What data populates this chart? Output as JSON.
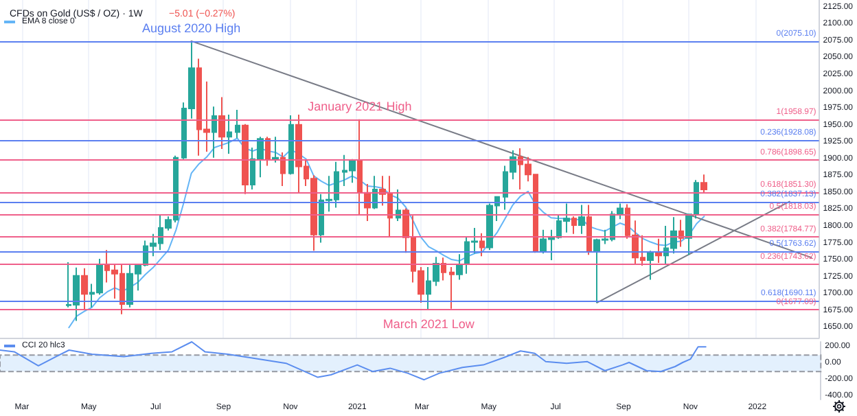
{
  "chart_data": [
    {
      "type": "candlestick",
      "title": "CFDs on Gold (US$ / OZ) · 1W",
      "subtitle": "−5.01 (−0.27%)",
      "x": [
        "2020-04-13",
        "2020-04-20",
        "2020-04-27",
        "2020-05-04",
        "2020-05-11",
        "2020-05-18",
        "2020-05-25",
        "2020-06-01",
        "2020-06-08",
        "2020-06-15",
        "2020-06-22",
        "2020-06-29",
        "2020-07-06",
        "2020-07-13",
        "2020-07-20",
        "2020-07-27",
        "2020-08-03",
        "2020-08-10",
        "2020-08-17",
        "2020-08-24",
        "2020-08-31",
        "2020-09-07",
        "2020-09-14",
        "2020-09-21",
        "2020-09-28",
        "2020-10-05",
        "2020-10-12",
        "2020-10-19",
        "2020-10-26",
        "2020-11-02",
        "2020-11-09",
        "2020-11-16",
        "2020-11-23",
        "2020-11-30",
        "2020-12-07",
        "2020-12-14",
        "2020-12-21",
        "2020-12-28",
        "2021-01-04",
        "2021-01-11",
        "2021-01-18",
        "2021-01-25",
        "2021-02-01",
        "2021-02-08",
        "2021-02-15",
        "2021-02-22",
        "2021-03-01",
        "2021-03-08",
        "2021-03-15",
        "2021-03-22",
        "2021-03-29",
        "2021-04-05",
        "2021-04-12",
        "2021-04-19",
        "2021-04-26",
        "2021-05-03",
        "2021-05-10",
        "2021-05-17",
        "2021-05-24",
        "2021-05-31",
        "2021-06-07",
        "2021-06-14",
        "2021-06-21",
        "2021-06-28",
        "2021-07-05",
        "2021-07-12",
        "2021-07-19",
        "2021-07-26",
        "2021-08-02",
        "2021-08-09",
        "2021-08-16",
        "2021-08-23",
        "2021-08-30",
        "2021-09-06",
        "2021-09-13",
        "2021-09-20",
        "2021-09-27",
        "2021-10-04",
        "2021-10-11",
        "2021-10-18",
        "2021-10-25",
        "2021-11-01",
        "2021-11-08",
        "2021-11-15"
      ],
      "ohlc": [
        [
          1683,
          1747,
          1680,
          1684
        ],
        [
          1684,
          1739,
          1660,
          1727
        ],
        [
          1727,
          1738,
          1676,
          1700
        ],
        [
          1700,
          1715,
          1680,
          1702
        ],
        [
          1702,
          1752,
          1699,
          1743
        ],
        [
          1743,
          1765,
          1717,
          1735
        ],
        [
          1735,
          1744,
          1693,
          1730
        ],
        [
          1730,
          1744,
          1670,
          1685
        ],
        [
          1685,
          1745,
          1680,
          1730
        ],
        [
          1730,
          1745,
          1705,
          1743
        ],
        [
          1743,
          1779,
          1741,
          1771
        ],
        [
          1771,
          1789,
          1756,
          1775
        ],
        [
          1775,
          1818,
          1765,
          1798
        ],
        [
          1798,
          1815,
          1794,
          1810
        ],
        [
          1810,
          1905,
          1806,
          1902
        ],
        [
          1902,
          1984,
          1900,
          1975
        ],
        [
          1975,
          2075,
          1960,
          2035
        ],
        [
          2035,
          2049,
          1905,
          1944
        ],
        [
          1944,
          2015,
          1911,
          1940
        ],
        [
          1940,
          1978,
          1902,
          1964
        ],
        [
          1964,
          1992,
          1915,
          1933
        ],
        [
          1933,
          1966,
          1908,
          1940
        ],
        [
          1940,
          1973,
          1931,
          1950
        ],
        [
          1950,
          1952,
          1848,
          1862
        ],
        [
          1862,
          1917,
          1855,
          1900
        ],
        [
          1900,
          1933,
          1873,
          1930
        ],
        [
          1930,
          1933,
          1890,
          1899
        ],
        [
          1899,
          1933,
          1895,
          1902
        ],
        [
          1902,
          1910,
          1860,
          1879
        ],
        [
          1879,
          1965,
          1877,
          1951
        ],
        [
          1951,
          1966,
          1850,
          1889
        ],
        [
          1889,
          1899,
          1860,
          1871
        ],
        [
          1871,
          1876,
          1764,
          1788
        ],
        [
          1788,
          1848,
          1776,
          1839
        ],
        [
          1839,
          1875,
          1822,
          1840
        ],
        [
          1840,
          1896,
          1828,
          1881
        ],
        [
          1881,
          1906,
          1860,
          1883
        ],
        [
          1883,
          1900,
          1865,
          1898
        ],
        [
          1898,
          1959,
          1817,
          1850
        ],
        [
          1850,
          1863,
          1808,
          1828
        ],
        [
          1828,
          1875,
          1826,
          1855
        ],
        [
          1855,
          1875,
          1831,
          1848
        ],
        [
          1848,
          1875,
          1785,
          1813
        ],
        [
          1813,
          1855,
          1808,
          1824
        ],
        [
          1824,
          1827,
          1761,
          1784
        ],
        [
          1784,
          1816,
          1717,
          1734
        ],
        [
          1734,
          1740,
          1687,
          1700
        ],
        [
          1700,
          1740,
          1677,
          1719
        ],
        [
          1719,
          1755,
          1712,
          1745
        ],
        [
          1745,
          1754,
          1720,
          1732
        ],
        [
          1732,
          1740,
          1678,
          1729
        ],
        [
          1729,
          1759,
          1721,
          1744
        ],
        [
          1744,
          1785,
          1730,
          1777
        ],
        [
          1777,
          1798,
          1760,
          1778
        ],
        [
          1778,
          1790,
          1756,
          1769
        ],
        [
          1769,
          1834,
          1765,
          1831
        ],
        [
          1831,
          1845,
          1808,
          1844
        ],
        [
          1844,
          1890,
          1825,
          1881
        ],
        [
          1881,
          1913,
          1870,
          1903
        ],
        [
          1903,
          1916,
          1855,
          1892
        ],
        [
          1892,
          1903,
          1867,
          1877
        ],
        [
          1877,
          1878,
          1761,
          1764
        ],
        [
          1764,
          1795,
          1760,
          1781
        ],
        [
          1781,
          1795,
          1750,
          1784
        ],
        [
          1784,
          1818,
          1782,
          1808
        ],
        [
          1808,
          1834,
          1791,
          1812
        ],
        [
          1812,
          1815,
          1789,
          1802
        ],
        [
          1802,
          1832,
          1789,
          1814
        ],
        [
          1814,
          1832,
          1758,
          1763
        ],
        [
          1763,
          1782,
          1687,
          1780
        ],
        [
          1780,
          1795,
          1774,
          1781
        ],
        [
          1781,
          1823,
          1778,
          1818
        ],
        [
          1818,
          1834,
          1811,
          1827
        ],
        [
          1827,
          1833,
          1782,
          1787
        ],
        [
          1787,
          1809,
          1745,
          1754
        ],
        [
          1754,
          1787,
          1742,
          1750
        ],
        [
          1750,
          1764,
          1721,
          1761
        ],
        [
          1761,
          1782,
          1746,
          1757
        ],
        [
          1757,
          1801,
          1745,
          1768
        ],
        [
          1768,
          1814,
          1760,
          1793
        ],
        [
          1793,
          1810,
          1770,
          1783
        ],
        [
          1783,
          1818,
          1758,
          1818
        ],
        [
          1818,
          1869,
          1812,
          1865
        ],
        [
          1865,
          1877,
          1849,
          1855
        ]
      ],
      "series": [
        {
          "name": "EMA 8 close 0",
          "type": "line",
          "color": "#64b5f6",
          "values": [
            1650,
            1667,
            1674,
            1680,
            1694,
            1703,
            1709,
            1704,
            1710,
            1717,
            1729,
            1739,
            1752,
            1765,
            1795,
            1835,
            1879,
            1893,
            1903,
            1917,
            1921,
            1925,
            1931,
            1916,
            1912,
            1916,
            1912,
            1910,
            1903,
            1914,
            1908,
            1900,
            1875,
            1867,
            1861,
            1865,
            1869,
            1875,
            1869,
            1860,
            1859,
            1857,
            1847,
            1842,
            1829,
            1808,
            1784,
            1770,
            1764,
            1757,
            1751,
            1749,
            1755,
            1760,
            1762,
            1777,
            1792,
            1812,
            1832,
            1845,
            1852,
            1832,
            1821,
            1813,
            1812,
            1812,
            1810,
            1811,
            1800,
            1796,
            1793,
            1799,
            1805,
            1801,
            1791,
            1782,
            1777,
            1773,
            1772,
            1777,
            1778,
            1787,
            1804,
            1815
          ]
        },
        {
          "type": "line",
          "color": "#787b86",
          "x": [
            "2020-08-03",
            "2022-02-21"
          ],
          "values": [
            2075,
            1754
          ]
        },
        {
          "type": "line",
          "color": "#787b86",
          "x": [
            "2021-08-09",
            "2022-02-01"
          ],
          "values": [
            1687,
            1837
          ]
        }
      ],
      "xlim": [
        "2020-02-10",
        "2022-02-28"
      ],
      "xticks": [
        {
          "value": "2020-03-01",
          "label": null
        },
        {
          "value": "2020-05-01",
          "label": null
        },
        {
          "value": "2020-07-01",
          "label": null
        },
        {
          "value": "2020-09-01",
          "label": null
        },
        {
          "value": "2020-11-01",
          "label": null
        },
        {
          "value": "2021-01-01",
          "label": null
        },
        {
          "value": "2021-03-01",
          "label": null
        },
        {
          "value": "2021-05-01",
          "label": null
        },
        {
          "value": "2021-07-01",
          "label": null
        },
        {
          "value": "2021-09-01",
          "label": null
        },
        {
          "value": "2021-11-01",
          "label": null
        },
        {
          "value": "2022-01-01",
          "label": null
        }
      ],
      "ylim": [
        1635,
        2136
      ],
      "yticks": [
        {
          "value": 1650,
          "label": "1650.00"
        },
        {
          "value": 1675,
          "label": "1675.00"
        },
        {
          "value": 1700,
          "label": "1700.00"
        },
        {
          "value": 1725,
          "label": "1725.00"
        },
        {
          "value": 1750,
          "label": "1750.00"
        },
        {
          "value": 1775,
          "label": "1775.00"
        },
        {
          "value": 1800,
          "label": "1800.00"
        },
        {
          "value": 1825,
          "label": "1825.00"
        },
        {
          "value": 1850,
          "label": "1850.00"
        },
        {
          "value": 1875,
          "label": "1875.00"
        },
        {
          "value": 1900,
          "label": "1900.00"
        },
        {
          "value": 1925,
          "label": "1925.00"
        },
        {
          "value": 1950,
          "label": "1950.00"
        },
        {
          "value": 1975,
          "label": "1975.00"
        },
        {
          "value": 2000,
          "label": "2000.00"
        },
        {
          "value": 2025,
          "label": "2025.00"
        },
        {
          "value": 2050,
          "label": "2050.00"
        },
        {
          "value": 2075,
          "label": "2075.00"
        },
        {
          "value": 2100,
          "label": "2100.00"
        },
        {
          "value": 2125,
          "label": "2125.00"
        }
      ],
      "tick_labels": "y",
      "grid": "x",
      "legend": "top left",
      "marker": "none",
      "ref_lines": [
        {
          "axis": "y",
          "value": 2075.1,
          "label": "0(2075.10)",
          "color": "#5b7ff0"
        },
        {
          "axis": "y",
          "value": 1928.08,
          "label": "0.236(1928.08)",
          "color": "#5b7ff0"
        },
        {
          "axis": "y",
          "value": 1837.13,
          "label": "0.382(1837.13)",
          "color": "#5b7ff0"
        },
        {
          "axis": "y",
          "value": 1763.62,
          "label": "0.5(1763.62)",
          "color": "#5b7ff0"
        },
        {
          "axis": "y",
          "value": 1690.11,
          "label": "0.618(1690.11)",
          "color": "#5b7ff0"
        },
        {
          "axis": "y",
          "value": 1958.97,
          "label": "1(1958.97)",
          "color": "#ef5f8a"
        },
        {
          "axis": "y",
          "value": 1898.65,
          "label": "0.786(1898.65)",
          "color": "#ef5f8a"
        },
        {
          "axis": "y",
          "value": 1851.3,
          "label": "0.618(1851.30)",
          "color": "#ef5f8a"
        },
        {
          "axis": "y",
          "value": 1818.03,
          "label": "0.5(1818.03)",
          "color": "#ef5f8a"
        },
        {
          "axis": "y",
          "value": 1784.77,
          "label": "0.382(1784.77)",
          "color": "#ef5f8a"
        },
        {
          "axis": "y",
          "value": 1743.62,
          "label": "0.236(1743.62)",
          "color": "#ef5f8a"
        },
        {
          "axis": "y",
          "value": 1677.09,
          "label": "0(1677.09)",
          "color": "#ef5f8a"
        }
      ],
      "annotations": [
        {
          "text": "August 2020 High",
          "x": "2020-08-03",
          "y": 2075.1
        },
        {
          "text": "January 2021 High",
          "x": "2021-01-04",
          "y": 1958.97
        },
        {
          "text": "March 2021 Low",
          "x": "2021-03-08",
          "y": 1677.09
        }
      ]
    },
    {
      "type": "line",
      "x": [
        "2020-02-10",
        "2020-02-23",
        "2020-03-16",
        "2020-04-01",
        "2020-04-13",
        "2020-05-04",
        "2020-06-02",
        "2020-06-27",
        "2020-07-16",
        "2020-08-03",
        "2020-08-15",
        "2020-09-05",
        "2020-09-24",
        "2020-10-28",
        "2020-11-26",
        "2020-12-08",
        "2021-01-01",
        "2021-01-15",
        "2021-01-31",
        "2021-02-16",
        "2021-03-03",
        "2021-03-17",
        "2021-04-07",
        "2021-04-26",
        "2021-05-15",
        "2021-05-30",
        "2021-06-12",
        "2021-06-22",
        "2021-07-11",
        "2021-07-30",
        "2021-08-15",
        "2021-08-31",
        "2021-09-06",
        "2021-09-22",
        "2021-10-05",
        "2021-10-18",
        "2021-10-25",
        "2021-11-01",
        "2021-11-08",
        "2021-11-15"
      ],
      "series": [
        {
          "name": "CCI 20 hlc3",
          "color": "#5b8def",
          "values": [
            160,
            140,
            -30,
            80,
            160,
            110,
            80,
            120,
            140,
            260,
            140,
            110,
            70,
            0,
            -170,
            -140,
            -20,
            -100,
            -60,
            -120,
            -200,
            -120,
            -50,
            -20,
            70,
            150,
            120,
            20,
            0,
            20,
            -90,
            -20,
            10,
            -90,
            -100,
            -40,
            10,
            50,
            200,
            200
          ]
        }
      ],
      "xlim": [
        "2020-02-10",
        "2022-02-28"
      ],
      "xticks": [
        {
          "value": "2020-03-01",
          "label": "Mar"
        },
        {
          "value": "2020-05-01",
          "label": "May"
        },
        {
          "value": "2020-07-01",
          "label": "Jul"
        },
        {
          "value": "2020-09-01",
          "label": "Sep"
        },
        {
          "value": "2020-11-01",
          "label": "Nov"
        },
        {
          "value": "2021-01-01",
          "label": "2021"
        },
        {
          "value": "2021-03-01",
          "label": "Mar"
        },
        {
          "value": "2021-05-01",
          "label": "May"
        },
        {
          "value": "2021-07-01",
          "label": "Jul"
        },
        {
          "value": "2021-09-01",
          "label": "Sep"
        },
        {
          "value": "2021-11-01",
          "label": "Nov"
        },
        {
          "value": "2022-01-01",
          "label": "2022"
        }
      ],
      "ylim": [
        -440,
        260
      ],
      "yticks": [
        {
          "value": 200,
          "label": "200.00"
        },
        {
          "value": 0,
          "label": "0.00"
        },
        {
          "value": -200,
          "label": "-200.00"
        },
        {
          "value": -400,
          "label": "-400.00"
        }
      ],
      "legend": "top left",
      "marker": "none",
      "bands": [
        {
          "axis": "y",
          "from": -100,
          "to": 100,
          "color": "#e3f0fd"
        }
      ]
    }
  ]
}
